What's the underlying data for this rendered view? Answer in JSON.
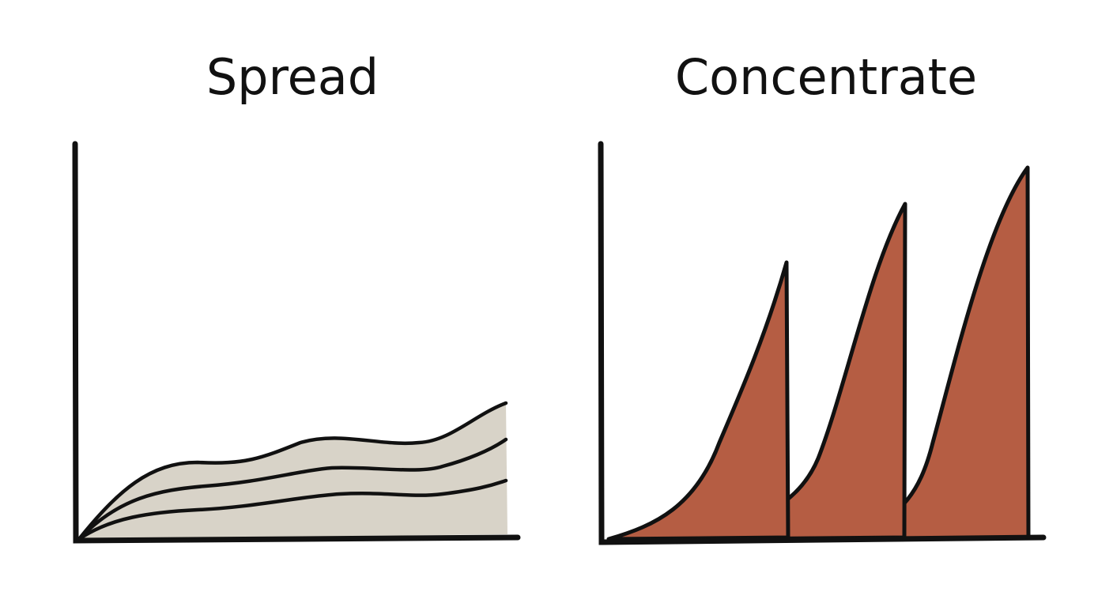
{
  "panels": [
    {
      "title": "Spread"
    },
    {
      "title": "Concentrate"
    }
  ]
}
